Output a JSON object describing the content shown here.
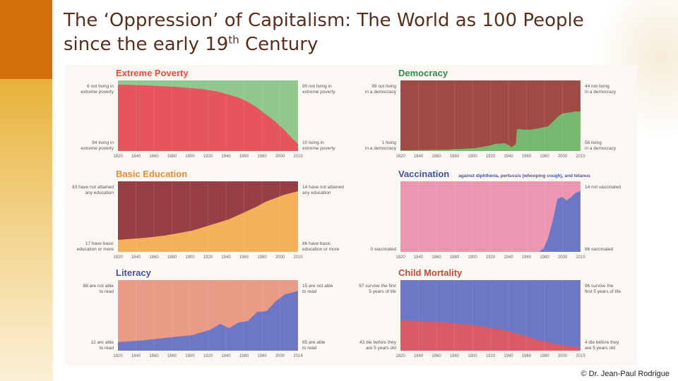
{
  "page": {
    "title_line1": "The ‘Oppression’ of Capitalism: The World as 100 People",
    "title_line2_pre": "since the early 19",
    "title_line2_sup": "th",
    "title_line2_post": " Century",
    "credit": "© Dr. Jean-Paul Rodrigue"
  },
  "colors": {
    "red": "#e5555b",
    "green": "#8fc78e",
    "darkred": "#9e4a45",
    "darkgreen": "#76b86f",
    "orange": "#f4b159",
    "maroon": "#973f44",
    "pink": "#eb97b2",
    "blue": "#6c77c5",
    "salmon": "#e99b86",
    "mortred": "#d85b67",
    "title_red": "#e94a3c",
    "title_green": "#2f8a4c",
    "title_orange": "#ec8a2b",
    "title_blue": "#3f52a6",
    "title_rust": "#c84737"
  },
  "chart_data": [
    {
      "id": "extreme-poverty",
      "type": "area",
      "title": "Extreme Poverty",
      "subtitle": "",
      "x": [
        1820,
        1850,
        1880,
        1910,
        1929,
        1950,
        1960,
        1970,
        1980,
        1990,
        2000,
        2010,
        2015
      ],
      "series": [
        {
          "name": "living in extreme poverty",
          "values": [
            94,
            93,
            91,
            88,
            84,
            76,
            70,
            62,
            52,
            42,
            30,
            16,
            10
          ]
        },
        {
          "name": "not living in extreme poverty",
          "values": [
            6,
            7,
            9,
            12,
            16,
            24,
            30,
            38,
            48,
            58,
            70,
            84,
            90
          ]
        }
      ],
      "ylim": [
        0,
        100
      ],
      "xticks": [
        "1820",
        "1840",
        "1860",
        "1880",
        "1900",
        "1920",
        "1940",
        "1960",
        "1980",
        "2000",
        "2015"
      ],
      "annotations": {
        "left_top": [
          "6 not living in",
          "extreme poverty"
        ],
        "left_bottom": [
          "94 living in",
          "extreme poverty"
        ],
        "right_top": [
          "90 not living in",
          "extreme poverty"
        ],
        "right_bottom": [
          "10 living in",
          "extreme poverty"
        ]
      }
    },
    {
      "id": "democracy",
      "type": "area",
      "title": "Democracy",
      "subtitle": "",
      "x": [
        1820,
        1870,
        1900,
        1918,
        1922,
        1933,
        1939,
        1940,
        1945,
        1946,
        1960,
        1973,
        1980,
        1990,
        1995,
        2000,
        2010,
        2015
      ],
      "series": [
        {
          "name": "living in a democracy",
          "values": [
            1,
            2,
            4,
            8,
            10,
            11,
            7,
            5,
            10,
            31,
            30,
            33,
            35,
            48,
            53,
            54,
            56,
            56
          ]
        },
        {
          "name": "not living in a democracy",
          "values": [
            99,
            98,
            96,
            92,
            90,
            89,
            93,
            95,
            90,
            69,
            70,
            67,
            65,
            52,
            47,
            46,
            44,
            44
          ]
        }
      ],
      "ylim": [
        0,
        100
      ],
      "xticks": [
        "1820",
        "1840",
        "1860",
        "1880",
        "1900",
        "1920",
        "1940",
        "1960",
        "1980",
        "2000",
        "2015"
      ],
      "annotations": {
        "left_top": [
          "99 not living",
          "in a democracy"
        ],
        "left_bottom": [
          "1 living",
          "in a democracy"
        ],
        "right_top": [
          "44 not living",
          "in a democracy"
        ],
        "right_bottom": [
          "56 living",
          "in a democracy"
        ]
      }
    },
    {
      "id": "basic-education",
      "type": "area",
      "title": "Basic Education",
      "subtitle": "",
      "x": [
        1820,
        1850,
        1870,
        1900,
        1920,
        1940,
        1950,
        1960,
        1970,
        1980,
        1990,
        2000,
        2015
      ],
      "series": [
        {
          "name": "have basic education or more",
          "values": [
            17,
            20,
            23,
            30,
            38,
            46,
            52,
            58,
            64,
            71,
            76,
            81,
            86
          ]
        },
        {
          "name": "have not attained any education",
          "values": [
            83,
            80,
            77,
            70,
            62,
            54,
            48,
            42,
            36,
            29,
            24,
            19,
            14
          ]
        }
      ],
      "ylim": [
        0,
        100
      ],
      "xticks": [
        "1820",
        "1840",
        "1860",
        "1880",
        "1900",
        "1920",
        "1940",
        "1960",
        "1980",
        "2000",
        "2015"
      ],
      "annotations": {
        "left_top": [
          "83 have not attained",
          "any education"
        ],
        "left_bottom": [
          "17 have basic",
          "education or more"
        ],
        "right_top": [
          "14 have not attained",
          "any education"
        ],
        "right_bottom": [
          "86 have basic",
          "education or more"
        ]
      }
    },
    {
      "id": "vaccination",
      "type": "area",
      "title": "Vaccination",
      "subtitle": "against diphtheria, pertussis (whooping cough), and tetanus",
      "x": [
        1820,
        1970,
        1975,
        1980,
        1985,
        1990,
        1995,
        2000,
        2005,
        2010,
        2015
      ],
      "series": [
        {
          "name": "vaccinated",
          "values": [
            0,
            0,
            5,
            20,
            45,
            75,
            78,
            73,
            78,
            84,
            86
          ]
        },
        {
          "name": "not vaccinated",
          "values": [
            100,
            100,
            95,
            80,
            55,
            25,
            22,
            27,
            22,
            16,
            14
          ]
        }
      ],
      "ylim": [
        0,
        100
      ],
      "xticks": [
        "1820",
        "1840",
        "1860",
        "1880",
        "1900",
        "1920",
        "1940",
        "1960",
        "1980",
        "2000",
        "2015"
      ],
      "annotations": {
        "left_top": [],
        "left_bottom": [
          "0 vaccinated"
        ],
        "right_top": [
          "14 not vaccinated"
        ],
        "right_bottom": [
          "86 vaccinated"
        ]
      }
    },
    {
      "id": "literacy",
      "type": "area",
      "title": "Literacy",
      "subtitle": "",
      "x": [
        1820,
        1850,
        1870,
        1900,
        1920,
        1930,
        1940,
        1950,
        1960,
        1970,
        1980,
        1990,
        2000,
        2010,
        2014
      ],
      "series": [
        {
          "name": "are able to read",
          "values": [
            12,
            15,
            18,
            22,
            30,
            38,
            32,
            40,
            42,
            55,
            56,
            70,
            80,
            83,
            85
          ]
        },
        {
          "name": "are not able to read",
          "values": [
            88,
            85,
            82,
            78,
            70,
            62,
            68,
            60,
            58,
            45,
            44,
            30,
            20,
            17,
            15
          ]
        }
      ],
      "ylim": [
        0,
        100
      ],
      "xticks": [
        "1820",
        "1840",
        "1860",
        "1880",
        "1900",
        "1920",
        "1940",
        "1960",
        "1980",
        "2000",
        "2014"
      ],
      "annotations": {
        "left_top": [
          "88 are not able",
          "to read"
        ],
        "left_bottom": [
          "12 are able",
          "to read"
        ],
        "right_top": [
          "15 are not able",
          "to read"
        ],
        "right_bottom": [
          "85 are able",
          "to read"
        ]
      }
    },
    {
      "id": "child-mortality",
      "type": "area",
      "title": "Child Mortality",
      "subtitle": "",
      "x": [
        1820,
        1870,
        1900,
        1930,
        1950,
        1970,
        1990,
        2000,
        2010,
        2015
      ],
      "series": [
        {
          "name": "die before they are 5 years old",
          "values": [
            43,
            40,
            36,
            30,
            23,
            15,
            9,
            7,
            5,
            4
          ]
        },
        {
          "name": "survive the first 5 years of life",
          "values": [
            57,
            60,
            64,
            70,
            77,
            85,
            91,
            93,
            95,
            96
          ]
        }
      ],
      "ylim": [
        0,
        100
      ],
      "xticks": [
        "1820",
        "1840",
        "1860",
        "1880",
        "1900",
        "1920",
        "1940",
        "1960",
        "1980",
        "2000",
        "2015"
      ],
      "annotations": {
        "left_top": [
          "57 survive the first",
          "5 years of life"
        ],
        "left_bottom": [
          "43 die before they",
          "are 5 years old"
        ],
        "right_top": [
          "96 survive the",
          "first 5 years of life"
        ],
        "right_bottom": [
          "4 die before they",
          "are 5 years old"
        ]
      }
    }
  ]
}
